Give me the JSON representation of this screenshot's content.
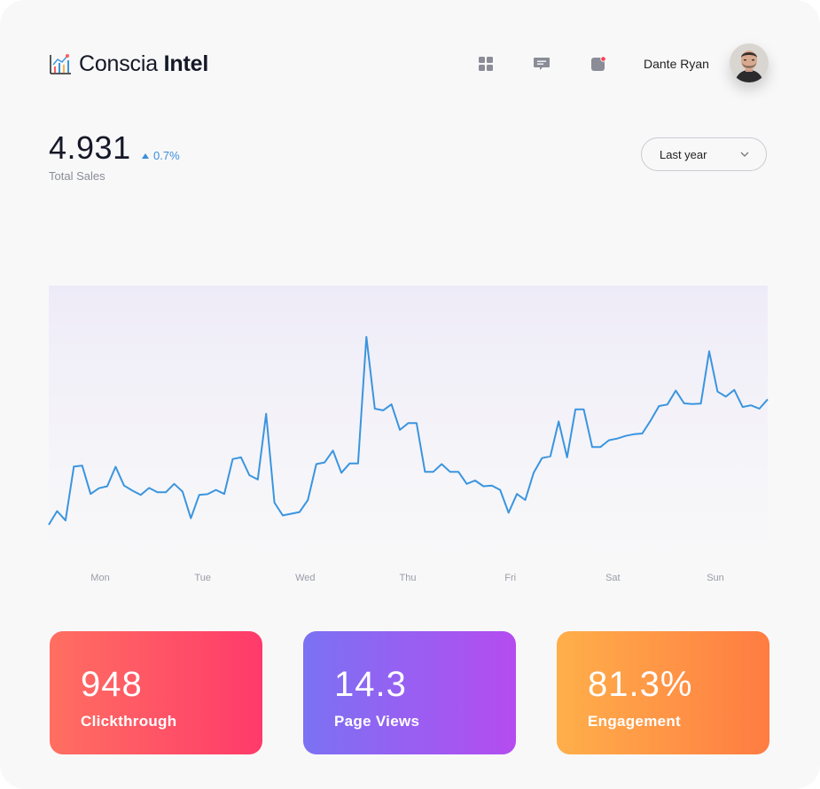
{
  "brand": {
    "name_light": "Conscia ",
    "name_bold": "Intel"
  },
  "header": {
    "icons": [
      "grid-icon",
      "chat-icon",
      "notification-icon"
    ],
    "user_name": "Dante Ryan",
    "notification_color": "#ff3b4e",
    "icon_color": "#8a8d97"
  },
  "kpi": {
    "value": "4.931",
    "change": "0.7%",
    "label": "Total Sales"
  },
  "period_select": {
    "selected": "Last year"
  },
  "chart_data": {
    "type": "line",
    "x_labels": [
      "Mon",
      "Tue",
      "Wed",
      "Thu",
      "Fri",
      "Sat",
      "Sun"
    ],
    "values": [
      0,
      0.073,
      0.023,
      0.31,
      0.315,
      0.164,
      0.195,
      0.205,
      0.309,
      0.209,
      0.182,
      0.159,
      0.196,
      0.173,
      0.173,
      0.218,
      0.177,
      0.035,
      0.159,
      0.163,
      0.186,
      0.164,
      0.35,
      0.359,
      0.264,
      0.241,
      0.591,
      0.118,
      0.05,
      0.059,
      0.068,
      0.132,
      0.323,
      0.332,
      0.395,
      0.277,
      0.327,
      0.327,
      1.0,
      0.618,
      0.609,
      0.641,
      0.505,
      0.541,
      0.541,
      0.282,
      0.282,
      0.323,
      0.282,
      0.282,
      0.218,
      0.236,
      0.205,
      0.209,
      0.186,
      0.064,
      0.164,
      0.132,
      0.277,
      0.355,
      0.364,
      0.55,
      0.359,
      0.614,
      0.614,
      0.414,
      0.414,
      0.45,
      0.459,
      0.473,
      0.482,
      0.486,
      0.555,
      0.632,
      0.64,
      0.714,
      0.646,
      0.643,
      0.645,
      0.923,
      0.709,
      0.682,
      0.718,
      0.627,
      0.636,
      0.618,
      0.668
    ],
    "line_color": "#3a95df",
    "area_color": "#eeebf8",
    "grid": false,
    "legend": "none"
  },
  "stats": [
    {
      "value": "948",
      "label": "Clickthrough"
    },
    {
      "value": "14.3",
      "label": "Page Views"
    },
    {
      "value": "81.3%",
      "label": "Engagement"
    }
  ]
}
